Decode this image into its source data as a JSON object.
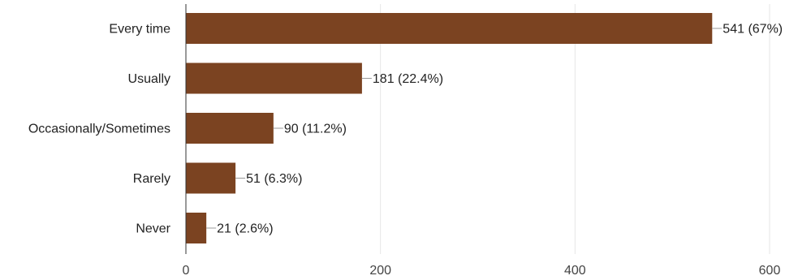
{
  "chart_data": {
    "type": "bar",
    "orientation": "horizontal",
    "categories": [
      "Every time",
      "Usually",
      "Occasionally/Sometimes",
      "Rarely",
      "Never"
    ],
    "values": [
      541,
      181,
      90,
      51,
      21
    ],
    "data_labels": [
      "541 (67%)",
      "181 (22.4%)",
      "90 (11.2%)",
      "51 (6.3%)",
      "21 (2.6%)"
    ],
    "xlim": [
      0,
      600
    ],
    "xticks": [
      0,
      200,
      400,
      600
    ],
    "xtick_labels": [
      "0",
      "200",
      "400",
      "600"
    ],
    "grid": true,
    "colors": {
      "bar": "#7b4321",
      "grid": "#e6e6e6",
      "axis": "#333333",
      "leader": "#999999"
    }
  }
}
